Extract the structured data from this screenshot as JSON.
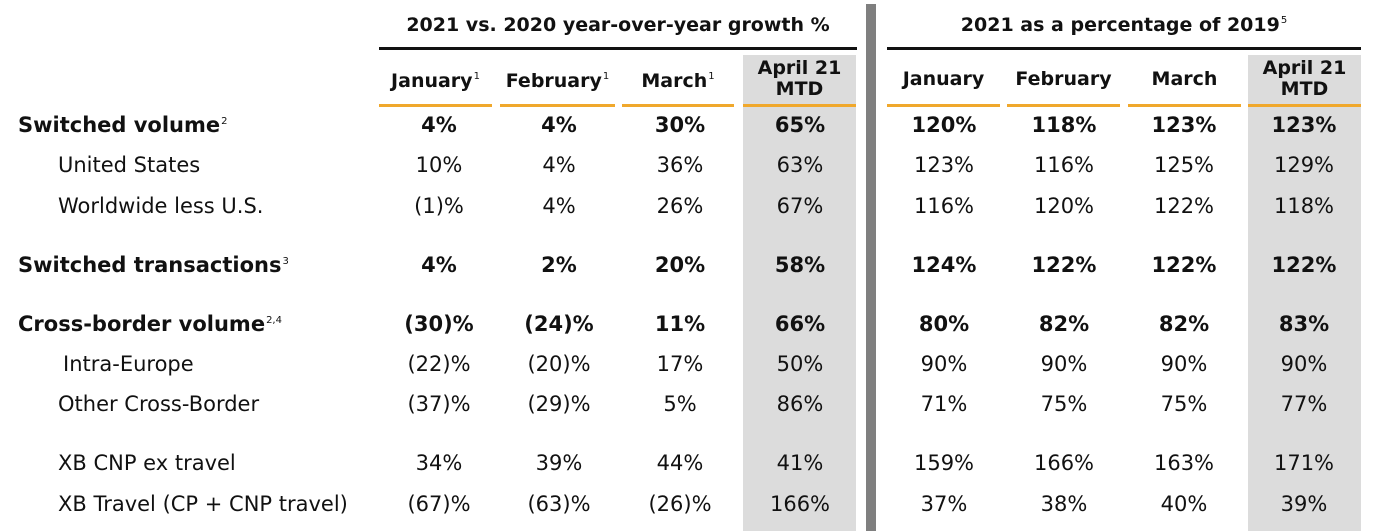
{
  "colors": {
    "accent_gold": "#f0a82c",
    "shade_gray": "#dcdcdc",
    "divider_gray": "#7f7f7f"
  },
  "groups": [
    {
      "title": "2021 vs. 2020 year-over-year growth %",
      "sup": ""
    },
    {
      "title": "2021 as a percentage of 2019",
      "sup": "5"
    }
  ],
  "columns": [
    {
      "label": "January",
      "sup": "1"
    },
    {
      "label": "February",
      "sup": "1"
    },
    {
      "label": "March",
      "sup": "1"
    },
    {
      "label": "April 21 MTD",
      "sup": ""
    },
    {
      "label": "January",
      "sup": ""
    },
    {
      "label": "February",
      "sup": ""
    },
    {
      "label": "March",
      "sup": ""
    },
    {
      "label": "April 21 MTD",
      "sup": ""
    }
  ],
  "rows": [
    {
      "label": "Switched volume",
      "sup": "2",
      "bold": true,
      "values": [
        "4%",
        "4%",
        "30%",
        "65%",
        "120%",
        "118%",
        "123%",
        "123%"
      ]
    },
    {
      "label": "United States",
      "sup": "",
      "bold": false,
      "values": [
        "10%",
        "4%",
        "36%",
        "63%",
        "123%",
        "116%",
        "125%",
        "129%"
      ]
    },
    {
      "label": "Worldwide less U.S.",
      "sup": "",
      "bold": false,
      "values": [
        "(1)%",
        "4%",
        "26%",
        "67%",
        "116%",
        "120%",
        "122%",
        "118%"
      ]
    },
    {
      "label": "Switched transactions",
      "sup": "3",
      "bold": true,
      "values": [
        "4%",
        "2%",
        "20%",
        "58%",
        "124%",
        "122%",
        "122%",
        "122%"
      ]
    },
    {
      "label": "Cross-border volume",
      "sup": "2,4",
      "bold": true,
      "values": [
        "(30)%",
        "(24)%",
        "11%",
        "66%",
        "80%",
        "82%",
        "82%",
        "83%"
      ]
    },
    {
      "label": "Intra-Europe",
      "sup": "",
      "bold": false,
      "values": [
        "(22)%",
        "(20)%",
        "17%",
        "50%",
        "90%",
        "90%",
        "90%",
        "90%"
      ]
    },
    {
      "label": "Other Cross-Border",
      "sup": "",
      "bold": false,
      "values": [
        "(37)%",
        "(29)%",
        "5%",
        "86%",
        "71%",
        "75%",
        "75%",
        "77%"
      ]
    },
    {
      "label": "XB CNP ex travel",
      "sup": "",
      "bold": false,
      "values": [
        "34%",
        "39%",
        "44%",
        "41%",
        "159%",
        "166%",
        "163%",
        "171%"
      ]
    },
    {
      "label": "XB Travel (CP + CNP travel)",
      "sup": "",
      "bold": false,
      "values": [
        "(67)%",
        "(63)%",
        "(26)%",
        "166%",
        "37%",
        "38%",
        "40%",
        "39%"
      ]
    }
  ]
}
